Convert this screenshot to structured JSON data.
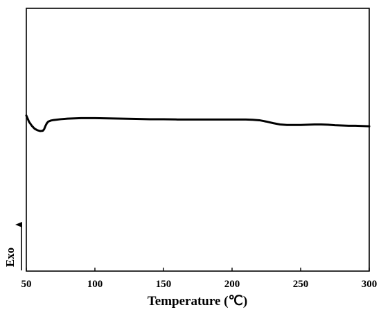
{
  "chart_data": {
    "type": "line",
    "xlabel": "Temperature (℃)",
    "ylabel": "Exo",
    "xlim": [
      50,
      300
    ],
    "ylim": [
      0,
      1
    ],
    "x_ticks": [
      50,
      100,
      150,
      200,
      250,
      300
    ],
    "y_ticks": [],
    "grid": false,
    "legend": "none",
    "line_color": "#000000",
    "y_axis_arrow": "up",
    "series": [
      {
        "x": [
          50,
          52,
          54,
          56,
          58,
          60,
          62,
          63,
          64,
          65,
          66,
          68,
          70,
          75,
          80,
          90,
          100,
          110,
          120,
          130,
          140,
          150,
          160,
          170,
          180,
          190,
          200,
          210,
          215,
          220,
          225,
          230,
          235,
          240,
          245,
          250,
          255,
          260,
          265,
          270,
          275,
          280,
          285,
          290,
          295,
          300
        ],
        "y": [
          0.592,
          0.568,
          0.553,
          0.542,
          0.536,
          0.533,
          0.534,
          0.54,
          0.553,
          0.563,
          0.569,
          0.573,
          0.575,
          0.578,
          0.58,
          0.582,
          0.582,
          0.581,
          0.58,
          0.579,
          0.578,
          0.578,
          0.577,
          0.577,
          0.577,
          0.577,
          0.577,
          0.577,
          0.576,
          0.574,
          0.569,
          0.563,
          0.558,
          0.556,
          0.556,
          0.556,
          0.557,
          0.558,
          0.558,
          0.557,
          0.555,
          0.554,
          0.553,
          0.553,
          0.552,
          0.551
        ]
      }
    ]
  }
}
